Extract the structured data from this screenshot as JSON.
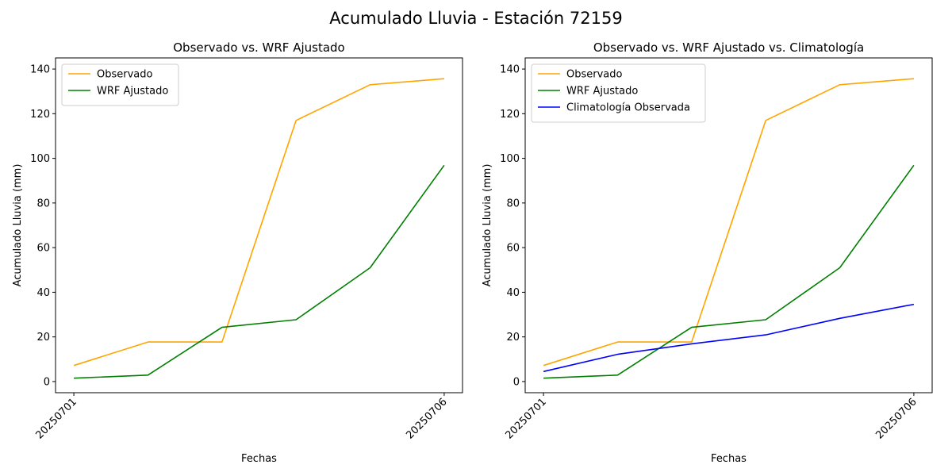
{
  "figure": {
    "suptitle": "Acumulado Lluvia - Estación 72159"
  },
  "colors": {
    "observado": "#FFA500",
    "wrf": "#008000",
    "climatologia": "#0000FF",
    "axes": "#000000"
  },
  "chart_data": [
    {
      "type": "line",
      "title": "Observado vs. WRF Ajustado",
      "xlabel": "Fechas",
      "ylabel": "Acumulado Lluvia (mm)",
      "x": [
        "20250701",
        "20250702",
        "20250703",
        "20250704",
        "20250705",
        "20250706"
      ],
      "xticks": [
        "20250701",
        "20250706"
      ],
      "yticks": [
        0,
        20,
        40,
        60,
        80,
        100,
        120,
        140
      ],
      "ylim": [
        -5,
        145
      ],
      "legend": "upper-left",
      "series": [
        {
          "name": "Observado",
          "color": "#FFA500",
          "values": [
            7.2,
            17.7,
            17.7,
            117.0,
            133.0,
            135.7
          ]
        },
        {
          "name": "WRF Ajustado",
          "color": "#008000",
          "values": [
            1.5,
            2.9,
            24.3,
            27.7,
            51.0,
            96.9
          ]
        }
      ]
    },
    {
      "type": "line",
      "title": "Observado vs. WRF Ajustado vs. Climatología",
      "xlabel": "Fechas",
      "ylabel": "Acumulado Lluvia (mm)",
      "x": [
        "20250701",
        "20250702",
        "20250703",
        "20250704",
        "20250705",
        "20250706"
      ],
      "xticks": [
        "20250701",
        "20250706"
      ],
      "yticks": [
        0,
        20,
        40,
        60,
        80,
        100,
        120,
        140
      ],
      "ylim": [
        -5,
        145
      ],
      "legend": "upper-left",
      "series": [
        {
          "name": "Observado",
          "color": "#FFA500",
          "values": [
            7.2,
            17.7,
            17.7,
            117.0,
            133.0,
            135.7
          ]
        },
        {
          "name": "WRF Ajustado",
          "color": "#008000",
          "values": [
            1.5,
            2.9,
            24.3,
            27.7,
            51.0,
            96.9
          ]
        },
        {
          "name": "Climatología Observada",
          "color": "#0000FF",
          "values": [
            4.5,
            12.2,
            16.9,
            20.9,
            28.3,
            34.6
          ]
        }
      ]
    }
  ]
}
